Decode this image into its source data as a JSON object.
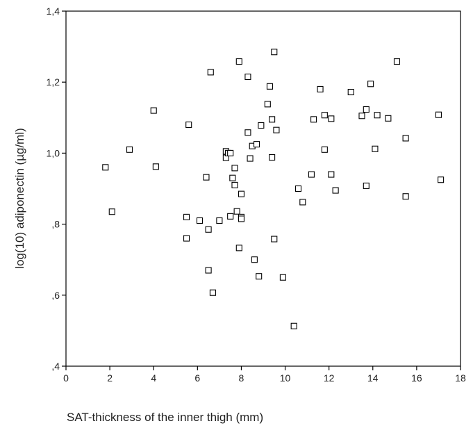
{
  "chart_data": {
    "type": "scatter",
    "title": "",
    "xlabel": "SAT-thickness of the inner thigh (mm)",
    "ylabel": "log(10) adiponectin (µg/ml)",
    "xlim": [
      0,
      18
    ],
    "ylim": [
      0.4,
      1.4
    ],
    "x_ticks": [
      0,
      2,
      4,
      6,
      8,
      10,
      12,
      14,
      16,
      18
    ],
    "x_tick_labels": [
      "0",
      "2",
      "4",
      "6",
      "8",
      "10",
      "12",
      "14",
      "16",
      "18"
    ],
    "y_ticks": [
      0.4,
      0.6,
      0.8,
      1.0,
      1.2,
      1.4
    ],
    "y_tick_labels": [
      ",4",
      ",6",
      ",8",
      "1,0",
      "1,2",
      "1,4"
    ],
    "grid": false,
    "marker": "open-square",
    "colors": {
      "marker": "#000000",
      "axis": "#000000",
      "background": "#ffffff"
    },
    "points": [
      {
        "x": 1.8,
        "y": 0.96
      },
      {
        "x": 2.1,
        "y": 0.835
      },
      {
        "x": 2.9,
        "y": 1.01
      },
      {
        "x": 4.0,
        "y": 1.12
      },
      {
        "x": 4.1,
        "y": 0.962
      },
      {
        "x": 5.5,
        "y": 0.82
      },
      {
        "x": 5.5,
        "y": 0.76
      },
      {
        "x": 5.6,
        "y": 1.08
      },
      {
        "x": 6.1,
        "y": 0.81
      },
      {
        "x": 6.4,
        "y": 0.932
      },
      {
        "x": 6.5,
        "y": 0.785
      },
      {
        "x": 6.5,
        "y": 0.67
      },
      {
        "x": 6.6,
        "y": 1.228
      },
      {
        "x": 6.7,
        "y": 0.607
      },
      {
        "x": 7.0,
        "y": 0.81
      },
      {
        "x": 7.3,
        "y": 1.005
      },
      {
        "x": 7.3,
        "y": 0.987
      },
      {
        "x": 7.4,
        "y": 1.0
      },
      {
        "x": 7.5,
        "y": 1.0
      },
      {
        "x": 7.5,
        "y": 0.822
      },
      {
        "x": 7.6,
        "y": 0.93
      },
      {
        "x": 7.7,
        "y": 0.958
      },
      {
        "x": 7.7,
        "y": 0.91
      },
      {
        "x": 7.8,
        "y": 0.836
      },
      {
        "x": 7.9,
        "y": 1.258
      },
      {
        "x": 7.9,
        "y": 0.733
      },
      {
        "x": 8.0,
        "y": 0.885
      },
      {
        "x": 8.0,
        "y": 0.82
      },
      {
        "x": 8.0,
        "y": 0.815
      },
      {
        "x": 8.3,
        "y": 1.215
      },
      {
        "x": 8.3,
        "y": 1.058
      },
      {
        "x": 8.4,
        "y": 0.985
      },
      {
        "x": 8.5,
        "y": 1.02
      },
      {
        "x": 8.6,
        "y": 0.7
      },
      {
        "x": 8.7,
        "y": 1.025
      },
      {
        "x": 8.8,
        "y": 0.653
      },
      {
        "x": 8.9,
        "y": 1.078
      },
      {
        "x": 9.2,
        "y": 1.138
      },
      {
        "x": 9.3,
        "y": 1.188
      },
      {
        "x": 9.4,
        "y": 0.988
      },
      {
        "x": 9.4,
        "y": 1.095
      },
      {
        "x": 9.5,
        "y": 1.285
      },
      {
        "x": 9.5,
        "y": 0.758
      },
      {
        "x": 9.6,
        "y": 1.065
      },
      {
        "x": 9.9,
        "y": 0.65
      },
      {
        "x": 10.4,
        "y": 0.513
      },
      {
        "x": 10.6,
        "y": 0.9
      },
      {
        "x": 10.8,
        "y": 0.862
      },
      {
        "x": 11.2,
        "y": 0.94
      },
      {
        "x": 11.3,
        "y": 1.095
      },
      {
        "x": 11.6,
        "y": 1.18
      },
      {
        "x": 11.8,
        "y": 1.01
      },
      {
        "x": 11.8,
        "y": 1.107
      },
      {
        "x": 12.1,
        "y": 1.097
      },
      {
        "x": 12.1,
        "y": 0.94
      },
      {
        "x": 12.3,
        "y": 0.895
      },
      {
        "x": 13.0,
        "y": 1.172
      },
      {
        "x": 13.5,
        "y": 1.105
      },
      {
        "x": 13.7,
        "y": 1.123
      },
      {
        "x": 13.7,
        "y": 0.908
      },
      {
        "x": 13.9,
        "y": 1.195
      },
      {
        "x": 14.1,
        "y": 1.012
      },
      {
        "x": 14.2,
        "y": 1.107
      },
      {
        "x": 14.7,
        "y": 1.098
      },
      {
        "x": 15.1,
        "y": 1.258
      },
      {
        "x": 15.5,
        "y": 1.042
      },
      {
        "x": 15.5,
        "y": 0.878
      },
      {
        "x": 17.0,
        "y": 1.108
      },
      {
        "x": 17.1,
        "y": 0.925
      }
    ]
  }
}
